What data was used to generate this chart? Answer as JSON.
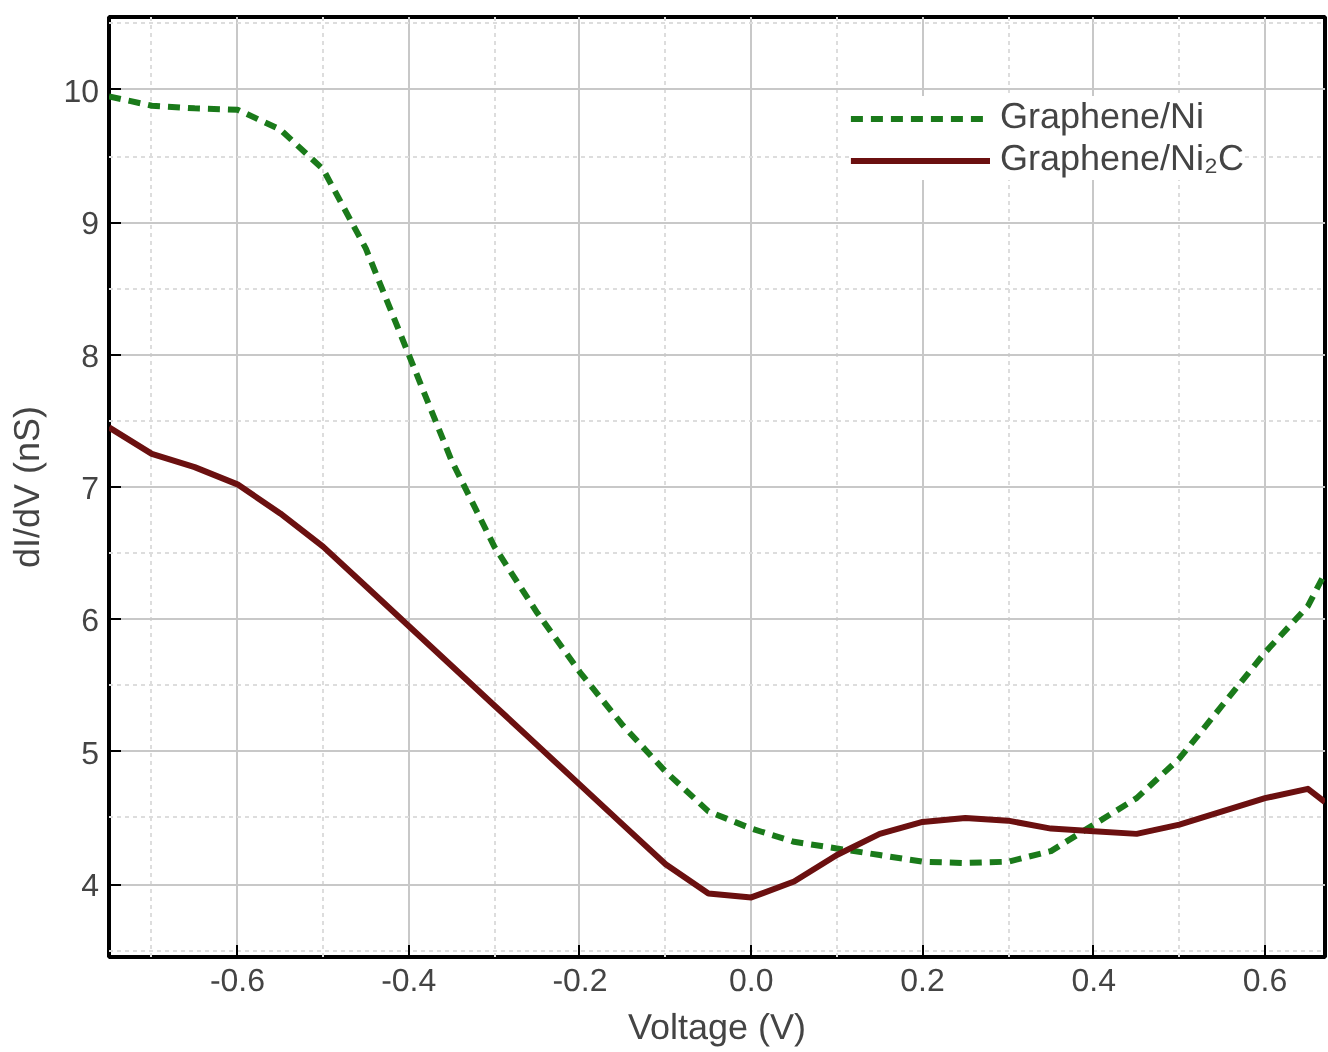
{
  "chart_data": {
    "type": "line",
    "xlabel": "Voltage (V)",
    "ylabel": "dI/dV (nS)",
    "xlim": [
      -0.75,
      0.67
    ],
    "ylim": [
      3.45,
      10.55
    ],
    "xticks": [
      {
        "value": -0.6,
        "label": "-0.6"
      },
      {
        "value": -0.4,
        "label": "-0.4"
      },
      {
        "value": -0.2,
        "label": "-0.2"
      },
      {
        "value": 0.0,
        "label": "0.0"
      },
      {
        "value": 0.2,
        "label": "0.2"
      },
      {
        "value": 0.4,
        "label": "0.4"
      },
      {
        "value": 0.6,
        "label": "0.6"
      }
    ],
    "yticks": [
      4,
      5,
      6,
      7,
      8,
      9,
      10
    ],
    "grid": true,
    "legend": "top right",
    "x": [
      -0.75,
      -0.7,
      -0.65,
      -0.6,
      -0.55,
      -0.5,
      -0.45,
      -0.4,
      -0.35,
      -0.3,
      -0.25,
      -0.2,
      -0.15,
      -0.1,
      -0.05,
      0.0,
      0.05,
      0.1,
      0.15,
      0.2,
      0.25,
      0.3,
      0.35,
      0.4,
      0.45,
      0.5,
      0.55,
      0.6,
      0.65,
      0.67
    ],
    "series": [
      {
        "name": "Graphene/Ni",
        "color": "#1a7a1a",
        "line_style": "dashed",
        "values": [
          9.95,
          9.88,
          9.86,
          9.85,
          9.7,
          9.4,
          8.8,
          8.0,
          7.2,
          6.55,
          6.05,
          5.6,
          5.2,
          4.85,
          4.55,
          4.42,
          4.32,
          4.27,
          4.22,
          4.17,
          4.16,
          4.17,
          4.25,
          4.45,
          4.65,
          4.95,
          5.35,
          5.75,
          6.1,
          6.35
        ]
      },
      {
        "name": "Graphene/Ni₂C",
        "color": "#6b1010",
        "line_style": "solid",
        "values": [
          7.45,
          7.25,
          7.15,
          7.02,
          6.8,
          6.55,
          6.25,
          5.95,
          5.65,
          5.35,
          5.05,
          4.75,
          4.45,
          4.15,
          3.93,
          3.9,
          4.02,
          4.22,
          4.38,
          4.47,
          4.5,
          4.48,
          4.42,
          4.4,
          4.38,
          4.45,
          4.55,
          4.65,
          4.72,
          4.62
        ]
      }
    ]
  }
}
